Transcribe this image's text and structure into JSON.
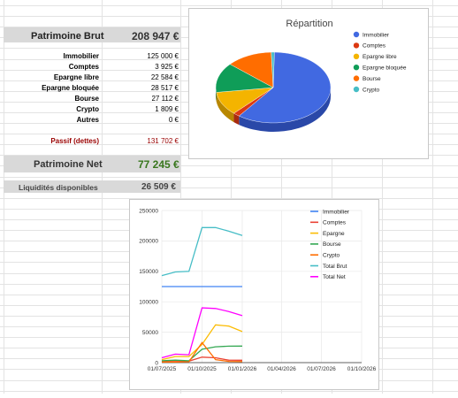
{
  "sheet": {
    "brut": {
      "label": "Patrimoine Brut",
      "value": "208 947 €"
    },
    "items": [
      {
        "label": "Immobilier",
        "value": "125 000 €"
      },
      {
        "label": "Comptes",
        "value": "3 925 €"
      },
      {
        "label": "Epargne libre",
        "value": "22 584 €"
      },
      {
        "label": "Epargne bloquée",
        "value": "28 517 €"
      },
      {
        "label": "Bourse",
        "value": "27 112 €"
      },
      {
        "label": "Crypto",
        "value": "1 809 €"
      },
      {
        "label": "Autres",
        "value": "0 €"
      }
    ],
    "passif": {
      "label": "Passif (dettes)",
      "value": "131 702 €"
    },
    "net": {
      "label": "Patrimoine Net",
      "value": "77 245 €"
    },
    "liquid": {
      "label": "Liquidités disponibles",
      "value": "26 509 €"
    },
    "colors": {
      "negative": "#990000",
      "positive": "#38761d",
      "header_bg": "#d9d9d9"
    }
  },
  "chart_data": [
    {
      "type": "pie",
      "title": "Répartition",
      "legend_position": "right",
      "labels": [
        "Immobilier",
        "Comptes",
        "Epargne libre",
        "Epargne bloquée",
        "Bourse",
        "Crypto"
      ],
      "values": [
        125000,
        3925,
        22584,
        28517,
        27112,
        1809
      ],
      "colors": [
        "#4169e1",
        "#dc3912",
        "#f4b400",
        "#0f9d58",
        "#ff6d00",
        "#46bdc6"
      ]
    },
    {
      "type": "line",
      "title": "",
      "legend_position": "right",
      "x": [
        "01/07/2025",
        "01/08/2025",
        "01/09/2025",
        "01/10/2025",
        "01/11/2025",
        "01/12/2025",
        "01/01/2026"
      ],
      "x_ticks": [
        "01/07/2025",
        "01/10/2025",
        "01/01/2026",
        "01/04/2026",
        "01/07/2026",
        "01/10/2026"
      ],
      "x_range": [
        "01/07/2025",
        "01/10/2026"
      ],
      "ylim": [
        0,
        250000
      ],
      "y_ticks": [
        "0",
        "50000",
        "100000",
        "150000",
        "200000",
        "250000"
      ],
      "y_tick_values": [
        0,
        50000,
        100000,
        150000,
        200000,
        250000
      ],
      "grid": true,
      "series": [
        {
          "name": "Immobilier",
          "color": "#4285f4",
          "values": [
            125000,
            125000,
            125000,
            125000,
            125000,
            125000,
            125000
          ]
        },
        {
          "name": "Comptes",
          "color": "#ea4335",
          "values": [
            2000,
            3000,
            2500,
            9000,
            8000,
            4000,
            3925
          ]
        },
        {
          "name": "Epargne",
          "color": "#fbbc04",
          "values": [
            5000,
            10000,
            10000,
            30000,
            62000,
            60000,
            51000
          ]
        },
        {
          "name": "Bourse",
          "color": "#34a853",
          "values": [
            3000,
            4000,
            3000,
            22000,
            26000,
            27000,
            27112
          ]
        },
        {
          "name": "Crypto",
          "color": "#ff6d01",
          "values": [
            1000,
            1000,
            1500,
            33000,
            5000,
            2000,
            1809
          ]
        },
        {
          "name": "Total Brut",
          "color": "#46bdc6",
          "values": [
            143000,
            149000,
            150000,
            222000,
            222000,
            216000,
            208947
          ]
        },
        {
          "name": "Total Net",
          "color": "#ff00ff",
          "values": [
            8000,
            14000,
            13000,
            90000,
            89000,
            84000,
            77245
          ]
        }
      ]
    }
  ]
}
